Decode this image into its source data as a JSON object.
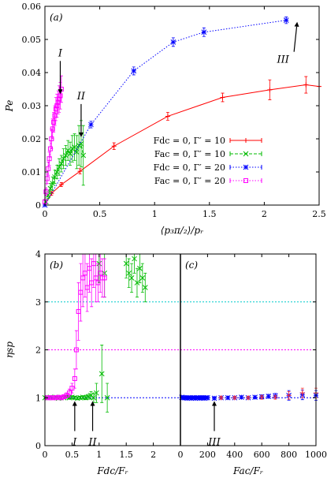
{
  "chart_data": [
    {
      "type": "line",
      "panel_label": "(a)",
      "xlabel": "⟨p₃π/₂⟩/pᵣ",
      "ylabel": "Pe",
      "xlim": [
        0,
        2.5
      ],
      "ylim": [
        0,
        0.06
      ],
      "xticks": [
        "0",
        "0.5",
        "1",
        "1.5",
        "2",
        "2.5"
      ],
      "yticks": [
        "0",
        "0.01",
        "0.02",
        "0.03",
        "0.04",
        "0.05",
        "0.06"
      ],
      "legend_position": "bottom-right",
      "series": [
        {
          "name": "Fdc = 0,  Γ′ = 10",
          "color": "#ff0000",
          "marker": "plus",
          "line": "solid",
          "x": [
            0,
            0.06,
            0.15,
            0.32,
            0.63,
            1.12,
            1.62,
            2.05,
            2.38,
            2.5
          ],
          "y": [
            0,
            0.0035,
            0.0062,
            0.0102,
            0.0178,
            0.0268,
            0.0325,
            0.0348,
            0.0363,
            0.0358
          ],
          "err": [
            0,
            0.0005,
            0.0006,
            0.0008,
            0.001,
            0.0012,
            0.0013,
            0.003,
            0.0025,
            0
          ]
        },
        {
          "name": "Fac = 0,  Γ′ = 10",
          "color": "#00bb00",
          "marker": "cross",
          "line": "dashed",
          "x": [
            0.01,
            0.03,
            0.05,
            0.07,
            0.09,
            0.11,
            0.13,
            0.15,
            0.17,
            0.19,
            0.21,
            0.23,
            0.25,
            0.27,
            0.29,
            0.31,
            0.33,
            0.35
          ],
          "y": [
            0.001,
            0.003,
            0.005,
            0.0065,
            0.0085,
            0.01,
            0.0115,
            0.0125,
            0.014,
            0.015,
            0.0165,
            0.0155,
            0.017,
            0.0175,
            0.016,
            0.018,
            0.0185,
            0.015
          ],
          "err": [
            0.0005,
            0.001,
            0.0015,
            0.002,
            0.002,
            0.002,
            0.0025,
            0.0025,
            0.003,
            0.003,
            0.003,
            0.0035,
            0.004,
            0.004,
            0.005,
            0.006,
            0.007,
            0.009
          ]
        },
        {
          "name": "Fdc = 0,  Γ′ = 20",
          "color": "#0000ff",
          "marker": "star",
          "line": "dotted",
          "x": [
            0,
            0.42,
            0.81,
            1.17,
            1.45,
            2.2
          ],
          "y": [
            0,
            0.0243,
            0.0405,
            0.0492,
            0.0522,
            0.0558
          ],
          "err": [
            0,
            0.001,
            0.0012,
            0.0013,
            0.0013,
            0.001
          ]
        },
        {
          "name": "Fac = 0,  Γ′ = 20",
          "color": "#ff00ff",
          "marker": "square",
          "line": "dotted",
          "x": [
            0.0,
            0.01,
            0.02,
            0.03,
            0.04,
            0.05,
            0.06,
            0.07,
            0.08,
            0.09,
            0.1,
            0.11,
            0.12,
            0.13,
            0.14,
            0.15
          ],
          "y": [
            0.001,
            0.004,
            0.008,
            0.011,
            0.014,
            0.017,
            0.02,
            0.023,
            0.025,
            0.027,
            0.029,
            0.03,
            0.031,
            0.032,
            0.033,
            0.035
          ],
          "err": [
            0.0005,
            0.001,
            0.0015,
            0.002,
            0.002,
            0.0025,
            0.003,
            0.003,
            0.003,
            0.003,
            0.0035,
            0.0035,
            0.0035,
            0.004,
            0.004,
            0.004
          ]
        }
      ],
      "annotations": [
        {
          "text": "I",
          "x": 0.14,
          "y": 0.0335
        },
        {
          "text": "II",
          "x": 0.33,
          "y": 0.0205
        },
        {
          "text": "III",
          "x": 2.3,
          "y": 0.0553
        }
      ]
    },
    {
      "type": "scatter",
      "panel_label": "(b)",
      "xlabel": "Fdc/Fᵣ",
      "ylabel": "ηsp",
      "xlim": [
        0,
        2.5
      ],
      "ylim": [
        0,
        4
      ],
      "xticks": [
        "0",
        "0.5",
        "1",
        "1.5",
        "2"
      ],
      "yticks": [
        "0",
        "1",
        "2",
        "3",
        "4"
      ],
      "hlines": [
        {
          "y": 1,
          "color": "#0000ff"
        },
        {
          "y": 2,
          "color": "#ff00ff"
        },
        {
          "y": 3,
          "color": "#00cccc"
        }
      ],
      "series": [
        {
          "name": "",
          "color": "#00bb00",
          "marker": "cross",
          "x": [
            0.0,
            0.05,
            0.1,
            0.15,
            0.2,
            0.25,
            0.3,
            0.35,
            0.4,
            0.45,
            0.5,
            0.55,
            0.6,
            0.65,
            0.7,
            0.75,
            0.8,
            0.85,
            0.9,
            0.95,
            1.0,
            1.05,
            1.1,
            1.15,
            1.5,
            1.55,
            1.6,
            1.65,
            1.7,
            1.75,
            1.8,
            1.85
          ],
          "y": [
            1.0,
            1.0,
            1.01,
            1.0,
            1.01,
            0.99,
            1.0,
            1.0,
            1.02,
            1.0,
            1.01,
            1.0,
            0.99,
            1.0,
            1.01,
            1.0,
            1.02,
            1.05,
            1.0,
            1.1,
            3.8,
            1.5,
            3.6,
            1.0,
            3.8,
            3.6,
            3.5,
            3.9,
            3.4,
            3.7,
            3.5,
            3.3
          ],
          "err": [
            0.02,
            0.02,
            0.02,
            0.02,
            0.02,
            0.02,
            0.02,
            0.02,
            0.03,
            0.03,
            0.03,
            0.03,
            0.03,
            0.03,
            0.03,
            0.04,
            0.05,
            0.08,
            0.1,
            0.2,
            0.4,
            0.6,
            0.5,
            0.3,
            0.3,
            0.3,
            0.3,
            0.3,
            0.3,
            0.3,
            0.3,
            0.3
          ]
        },
        {
          "name": "",
          "color": "#ff00ff",
          "marker": "square",
          "x": [
            0.05,
            0.1,
            0.15,
            0.2,
            0.25,
            0.3,
            0.35,
            0.4,
            0.45,
            0.5,
            0.55,
            0.58,
            0.62,
            0.66,
            0.7,
            0.74,
            0.78,
            0.82,
            0.86,
            0.9,
            0.94,
            0.98,
            1.02,
            1.06,
            1.1
          ],
          "y": [
            1.0,
            1.0,
            1.0,
            1.0,
            1.01,
            1.0,
            1.02,
            1.05,
            1.1,
            1.2,
            1.4,
            2.0,
            2.8,
            3.2,
            3.5,
            3.6,
            3.3,
            3.7,
            3.4,
            3.8,
            3.5,
            3.4,
            3.6,
            3.5,
            3.5
          ],
          "err": [
            0.02,
            0.02,
            0.02,
            0.02,
            0.02,
            0.03,
            0.03,
            0.05,
            0.08,
            0.1,
            0.2,
            0.4,
            0.6,
            0.6,
            0.6,
            0.5,
            0.5,
            0.5,
            0.5,
            0.5,
            0.5,
            0.4,
            0.4,
            0.4,
            0.4
          ]
        }
      ],
      "annotations": [
        {
          "text": "I",
          "x": 0.55,
          "y": 0.93
        },
        {
          "text": "II",
          "x": 0.88,
          "y": 0.93
        }
      ]
    },
    {
      "type": "scatter",
      "panel_label": "(c)",
      "xlabel": "Fac/Fᵣ",
      "ylabel": "",
      "xlim": [
        0,
        1000
      ],
      "ylim": [
        0,
        4
      ],
      "xticks": [
        "0",
        "200",
        "400",
        "600",
        "800",
        "1000"
      ],
      "hlines": [
        {
          "y": 1,
          "color": "#0000ff"
        },
        {
          "y": 2,
          "color": "#ff00ff"
        },
        {
          "y": 3,
          "color": "#00cccc"
        }
      ],
      "series": [
        {
          "name": "",
          "color": "#0000ff",
          "marker": "star",
          "x": [
            10,
            20,
            30,
            40,
            50,
            60,
            70,
            80,
            90,
            100,
            110,
            120,
            130,
            140,
            150,
            160,
            170,
            180,
            190,
            200,
            250,
            300,
            350,
            400,
            450,
            500,
            550,
            600,
            650,
            700,
            800,
            900,
            1000
          ],
          "y": [
            1.01,
            1.0,
            1.0,
            1.0,
            0.99,
            1.0,
            1.0,
            0.99,
            1.0,
            1.0,
            0.99,
            1.0,
            1.0,
            0.99,
            1.0,
            1.0,
            1.0,
            0.99,
            1.0,
            1.0,
            0.99,
            1.0,
            1.0,
            1.0,
            1.01,
            1.0,
            1.01,
            1.02,
            1.03,
            1.04,
            1.05,
            1.06,
            1.05
          ],
          "err": [
            0.02,
            0.02,
            0.02,
            0.02,
            0.02,
            0.02,
            0.02,
            0.02,
            0.02,
            0.02,
            0.02,
            0.02,
            0.02,
            0.02,
            0.02,
            0.02,
            0.02,
            0.02,
            0.02,
            0.02,
            0.03,
            0.03,
            0.03,
            0.03,
            0.03,
            0.03,
            0.03,
            0.04,
            0.04,
            0.05,
            0.1,
            0.1,
            0.1
          ]
        },
        {
          "name": "",
          "color": "#ff3333",
          "marker": "plus",
          "x": [
            300,
            400,
            500,
            600,
            700,
            800,
            900,
            1000
          ],
          "y": [
            1.0,
            1.0,
            1.0,
            1.01,
            1.01,
            1.05,
            1.1,
            1.1
          ],
          "err": [
            0.03,
            0.03,
            0.03,
            0.04,
            0.04,
            0.08,
            0.1,
            0.1
          ]
        }
      ],
      "annotations": [
        {
          "text": "III",
          "x": 250,
          "y": 0.93
        }
      ]
    }
  ]
}
